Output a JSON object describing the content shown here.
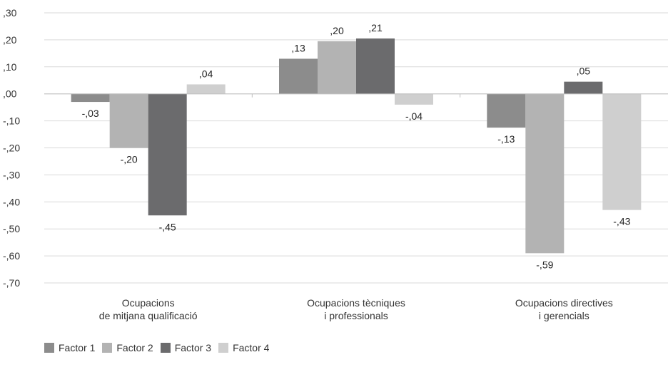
{
  "chart_data": {
    "type": "bar",
    "categories": [
      [
        "Ocupacions",
        "de mitjana qualificació"
      ],
      [
        "Ocupacions tècniques",
        "i professionals"
      ],
      [
        "Ocupacions directives",
        "i gerencials"
      ]
    ],
    "series": [
      {
        "name": "Factor 1",
        "color": "#8c8c8c",
        "values": [
          -0.03,
          0.13,
          -0.125
        ],
        "labels": [
          "-,03",
          ",13",
          "-,13"
        ]
      },
      {
        "name": "Factor 2",
        "color": "#b3b3b3",
        "values": [
          -0.2,
          0.195,
          -0.59
        ],
        "labels": [
          "-,20",
          ",20",
          "-,59"
        ]
      },
      {
        "name": "Factor 3",
        "color": "#6b6b6d",
        "values": [
          -0.45,
          0.205,
          0.045
        ],
        "labels": [
          "-,45",
          ",21",
          ",05"
        ]
      },
      {
        "name": "Factor 4",
        "color": "#cfcfcf",
        "values": [
          0.035,
          -0.04,
          -0.43
        ],
        "labels": [
          ",04",
          "-,04",
          "-,43"
        ]
      }
    ],
    "ylim": [
      -0.7,
      0.3
    ],
    "yticks": [
      {
        "value": 0.3,
        "label": ",30"
      },
      {
        "value": 0.2,
        "label": ",20"
      },
      {
        "value": 0.1,
        "label": ",10"
      },
      {
        "value": 0.0,
        "label": ",00"
      },
      {
        "value": -0.1,
        "label": "-,10"
      },
      {
        "value": -0.2,
        "label": "-,20"
      },
      {
        "value": -0.3,
        "label": "-,30"
      },
      {
        "value": -0.4,
        "label": "-,40"
      },
      {
        "value": -0.5,
        "label": "-,50"
      },
      {
        "value": -0.6,
        "label": "-,60"
      },
      {
        "value": -0.7,
        "label": "-,70"
      }
    ],
    "grid": true,
    "legend_position": "bottom-left",
    "title": "",
    "xlabel": "",
    "ylabel": ""
  }
}
